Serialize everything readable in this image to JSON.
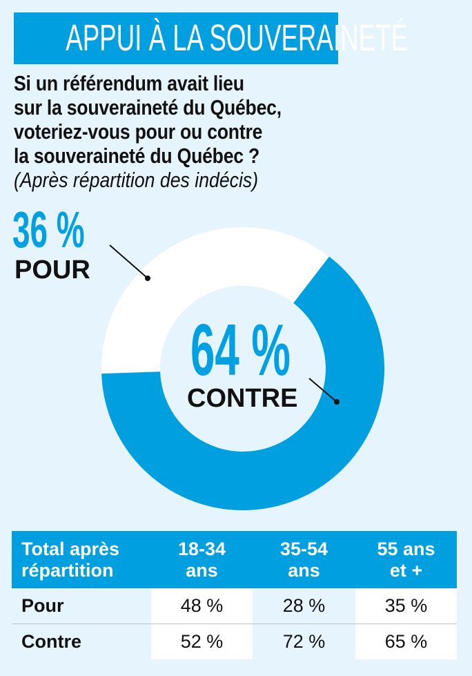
{
  "title": "APPUI À LA SOUVERAINETÉ",
  "question_lines": [
    "Si un référendum avait lieu",
    "sur la souveraineté du Québec,",
    "voteriez-vous pour ou contre",
    "la souveraineté du Québec ?"
  ],
  "question_note": "(Après répartition des indécis)",
  "colors": {
    "accent": "#009fe0",
    "background": "#e6f4fd",
    "pour_segment": "#ffffff",
    "contre_segment": "#009fe0"
  },
  "labels": {
    "pour_pct": "36 %",
    "pour": "POUR",
    "contre_pct": "64 %",
    "contre": "CONTRE"
  },
  "table": {
    "headers": [
      "Total après\nrépartition",
      "18-34\nans",
      "35-54\nans",
      "55 ans\net +"
    ],
    "header_lines": [
      [
        "Total après",
        "répartition"
      ],
      [
        "18-34",
        "ans"
      ],
      [
        "35-54",
        "ans"
      ],
      [
        "55 ans",
        "et +"
      ]
    ],
    "rows": [
      {
        "label": "Pour",
        "values": [
          "48 %",
          "28 %",
          "35 %"
        ]
      },
      {
        "label": "Contre",
        "values": [
          "52 %",
          "72 %",
          "65 %"
        ]
      }
    ]
  },
  "chart_data": [
    {
      "type": "pie",
      "variant": "donut",
      "title": "APPUI À LA SOUVERAINETÉ",
      "subtitle": "Si un référendum avait lieu sur la souveraineté du Québec, voteriez-vous pour ou contre la souveraineté du Québec ? (Après répartition des indécis)",
      "categories": [
        "POUR",
        "CONTRE"
      ],
      "values": [
        36,
        64
      ],
      "unit": "%",
      "data_labels": [
        "36 %",
        "64 %"
      ]
    },
    {
      "type": "table",
      "columns": [
        "Total après répartition",
        "18-34 ans",
        "35-54 ans",
        "55 ans et +"
      ],
      "rows": [
        [
          "Pour",
          48,
          28,
          35
        ],
        [
          "Contre",
          52,
          72,
          65
        ]
      ],
      "unit": "%"
    }
  ]
}
